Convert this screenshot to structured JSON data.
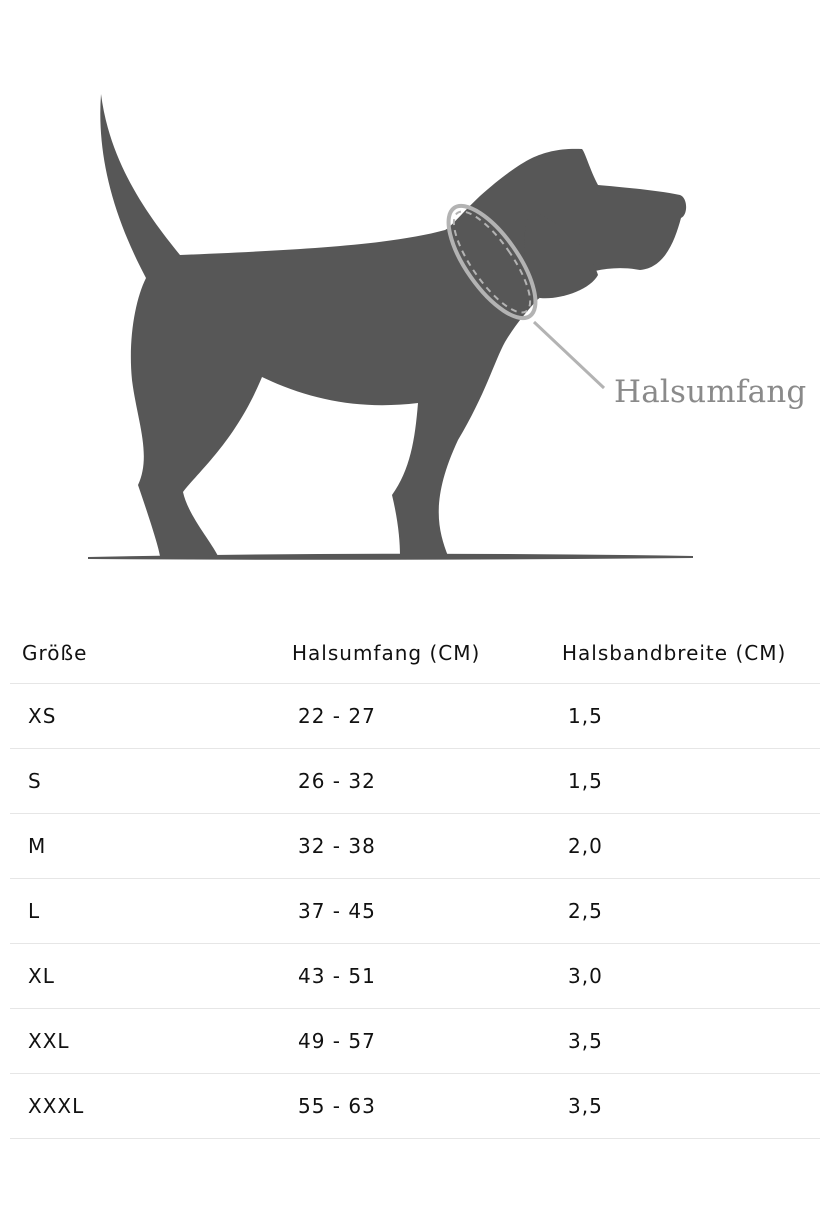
{
  "figure": {
    "neck_label": "Halsumfang",
    "colors": {
      "silhouette": "#575757",
      "collar": "#b3b3b3",
      "label": "#8a8a8a"
    }
  },
  "table": {
    "headers": [
      "Größe",
      "Halsumfang (CM)",
      "Halsbandbreite (CM)"
    ],
    "rows": [
      {
        "size": "XS",
        "neck": "22 - 27",
        "width": "1,5"
      },
      {
        "size": "S",
        "neck": "26 - 32",
        "width": "1,5"
      },
      {
        "size": "M",
        "neck": "32 - 38",
        "width": "2,0"
      },
      {
        "size": "L",
        "neck": "37 - 45",
        "width": "2,5"
      },
      {
        "size": "XL",
        "neck": "43 - 51",
        "width": "3,0"
      },
      {
        "size": "XXL",
        "neck": "49 - 57",
        "width": "3,5"
      },
      {
        "size": "XXXL",
        "neck": "55 - 63",
        "width": "3,5"
      }
    ]
  }
}
